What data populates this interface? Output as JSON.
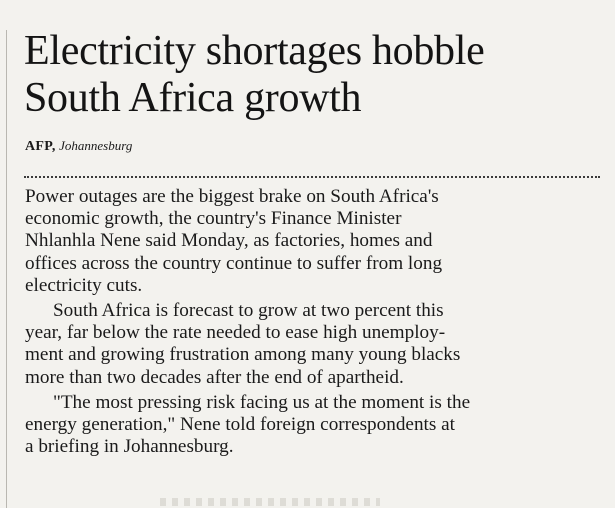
{
  "article": {
    "headline_lines": [
      "Electricity shortages hobble",
      "South Africa growth"
    ],
    "byline": {
      "agency": "AFP,",
      "location": "Johannesburg"
    },
    "paragraphs": [
      [
        "Power outages are the biggest brake on South Africa's",
        "economic growth, the country's Finance Minister",
        "Nhlanhla Nene said Monday, as factories, homes and",
        "offices across the country continue to suffer from long",
        "electricity cuts."
      ],
      [
        "South Africa is forecast to grow at two percent this",
        "year, far below the rate needed to ease high unemploy-",
        "ment and growing frustration among many young blacks",
        "more than two decades after the end of apartheid."
      ],
      [
        "\"The most pressing risk facing us at the moment is the",
        "energy generation,\" Nene told foreign correspondents at",
        "a briefing in Johannesburg."
      ]
    ]
  }
}
